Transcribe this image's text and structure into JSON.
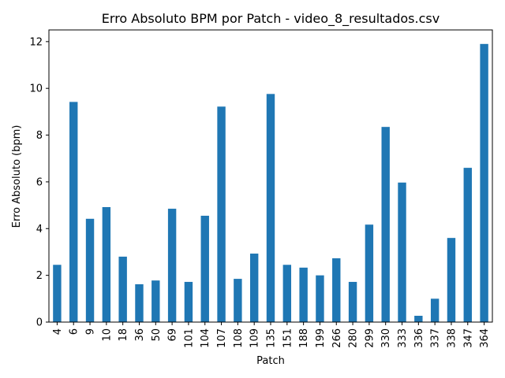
{
  "chart_data": {
    "type": "bar",
    "title": "Erro Absoluto BPM por Patch - video_8_resultados.csv",
    "xlabel": "Patch",
    "ylabel": "Erro Absoluto (bpm)",
    "categories": [
      "4",
      "6",
      "9",
      "10",
      "18",
      "36",
      "50",
      "69",
      "101",
      "104",
      "107",
      "108",
      "109",
      "135",
      "151",
      "188",
      "199",
      "266",
      "280",
      "299",
      "330",
      "333",
      "336",
      "337",
      "338",
      "347",
      "364"
    ],
    "values": [
      2.45,
      9.42,
      4.42,
      4.92,
      2.8,
      1.62,
      1.78,
      4.85,
      1.72,
      4.55,
      9.22,
      1.85,
      2.93,
      9.76,
      2.45,
      2.33,
      2.0,
      2.73,
      1.72,
      4.17,
      8.35,
      5.97,
      0.27,
      1.0,
      3.6,
      6.6,
      11.9
    ],
    "yticks": [
      "0",
      "2",
      "4",
      "6",
      "8",
      "10",
      "12"
    ],
    "ylim": [
      0,
      12.5
    ],
    "grid": false,
    "bar_color": "#1f77b4"
  }
}
